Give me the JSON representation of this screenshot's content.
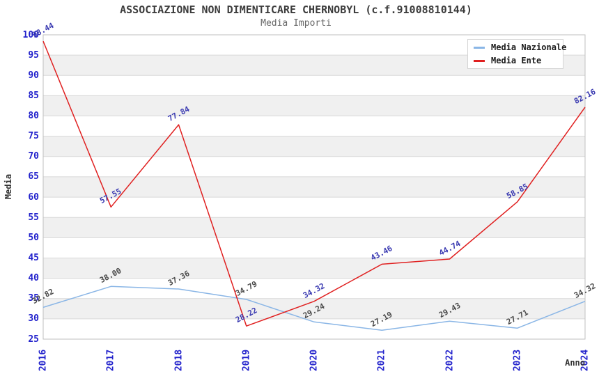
{
  "chart_data": {
    "type": "line",
    "title": "ASSOCIAZIONE NON DIMENTICARE CHERNOBYL (c.f.91008810144)",
    "subtitle": "Media Importi",
    "xlabel": "Anno",
    "ylabel": "Media",
    "ylim": [
      25,
      100
    ],
    "ytick_step": 5,
    "categories": [
      "2016",
      "2017",
      "2018",
      "2019",
      "2020",
      "2021",
      "2022",
      "2023",
      "2024"
    ],
    "series": [
      {
        "name": "Media Nazionale",
        "color": "#8ab6e6",
        "label_color": "#4a4a4a",
        "values": [
          32.82,
          38.0,
          37.36,
          34.79,
          29.24,
          27.19,
          29.43,
          27.71,
          34.32
        ]
      },
      {
        "name": "Media Ente",
        "color": "#e02020",
        "label_color": "#3737b0",
        "values": [
          98.44,
          57.55,
          77.84,
          28.22,
          34.32,
          43.46,
          44.74,
          58.85,
          82.16
        ]
      }
    ],
    "legend": {
      "position": "top-right"
    },
    "grid": {
      "bands": true,
      "band_color": "#f0f0f0",
      "line_color": "#d8d8d8",
      "border_color": "#bfbfbf"
    },
    "tick_label_color": "#2222cc",
    "title_color": "#3c3c3c",
    "subtitle_color": "#666666"
  }
}
